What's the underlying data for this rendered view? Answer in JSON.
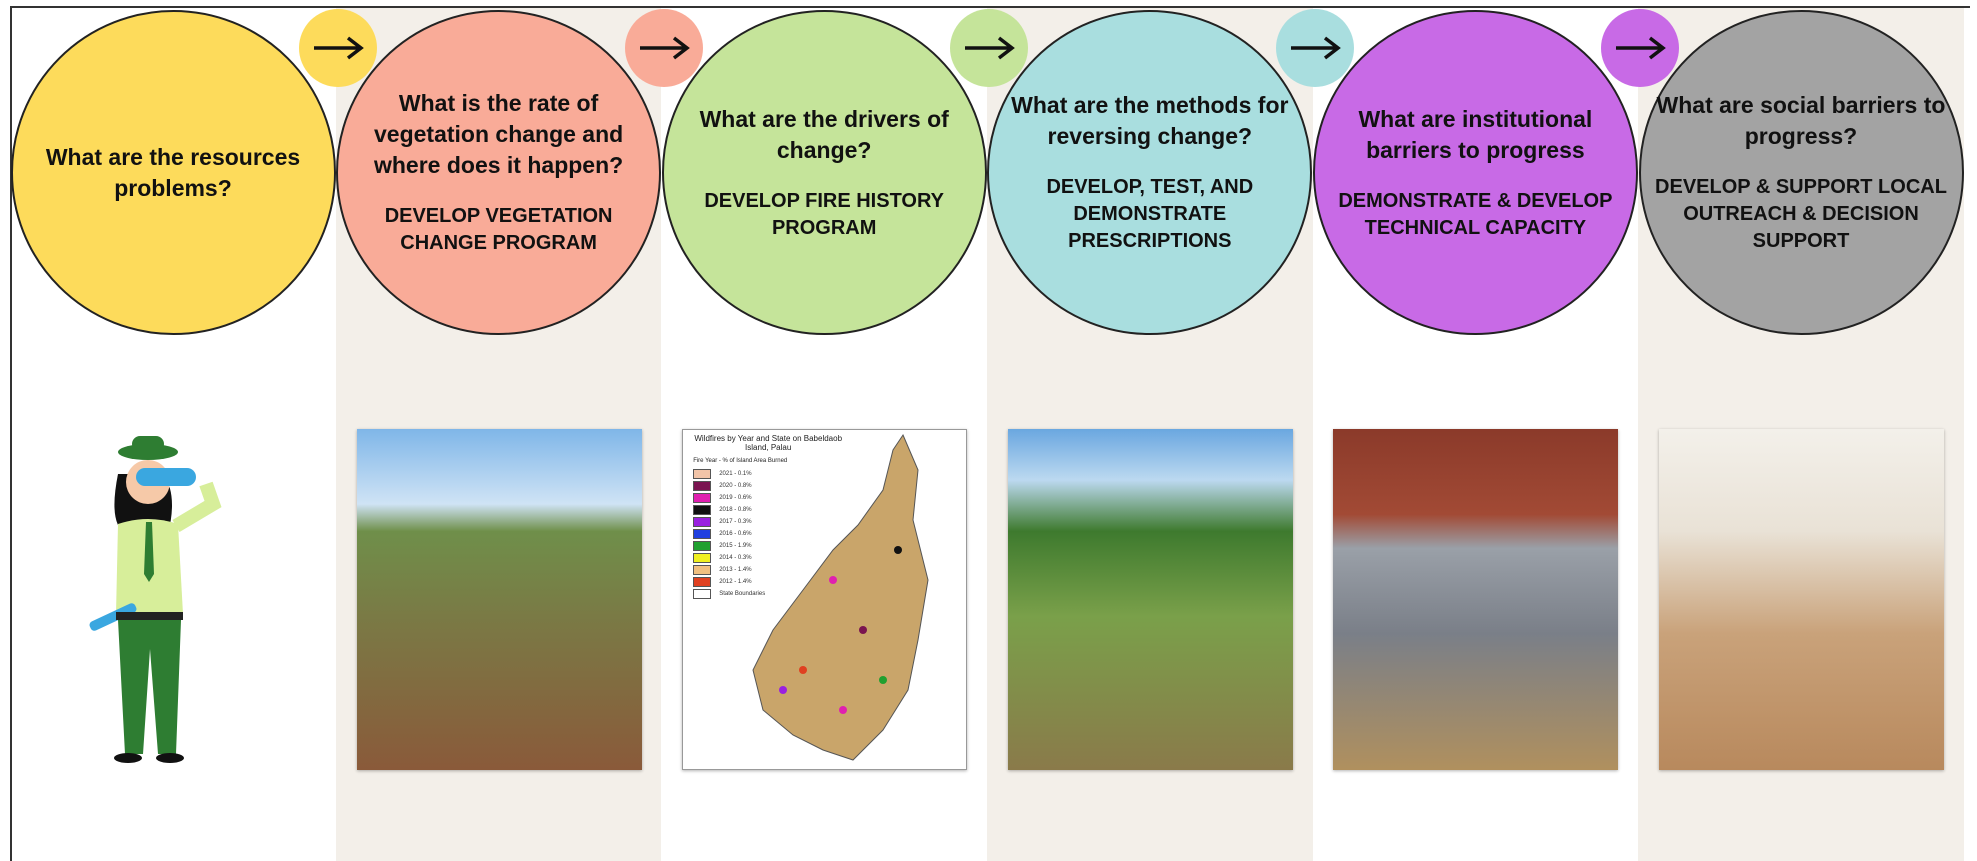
{
  "columns": [
    {
      "question": "What are the resources problems?",
      "color": "#fddb5b",
      "band": "#ffffff",
      "picture": "ranger"
    },
    {
      "question": "What is the rate of vegetation change and where does it happen?",
      "action": "DEVELOP VEGETATION CHANGE PROGRAM",
      "color": "#f9ab98",
      "band": "#f3efe9",
      "picture": "shrubland"
    },
    {
      "question": "What are the drivers of change?",
      "action": "DEVELOP FIRE HISTORY PROGRAM",
      "color": "#c5e49a",
      "band": "#ffffff",
      "picture": "map"
    },
    {
      "question": "What are the methods for reversing change?",
      "action": "DEVELOP, TEST, AND DEMONSTRATE PRESCRIPTIONS",
      "color": "#a9dedf",
      "band": "#f3efe9",
      "picture": "planting"
    },
    {
      "question": "What are institutional barriers to progress",
      "action": "DEMONSTRATE & DEVELOP TECHNICAL CAPACITY",
      "color": "#c86ae6",
      "band": "#ffffff",
      "picture": "shelter"
    },
    {
      "question": "What are social barriers to progress?",
      "action": "DEVELOP  & SUPPORT LOCAL OUTREACH & DECISION SUPPORT",
      "color": "#a3a3a3",
      "band": "#f3efe9",
      "picture": "classroom"
    }
  ],
  "map": {
    "title": "Wildfires by Year and State on Babeldaob Island, Palau",
    "subtitle": "Fire Year - % of Island Area Burned",
    "legend": [
      {
        "label": "2021 - 0.1%",
        "color": "#f2c4a8"
      },
      {
        "label": "2020 - 0.8%",
        "color": "#7a1450"
      },
      {
        "label": "2019 - 0.6%",
        "color": "#e020b0"
      },
      {
        "label": "2018 - 0.8%",
        "color": "#111111"
      },
      {
        "label": "2017 - 0.3%",
        "color": "#9a20e0"
      },
      {
        "label": "2016 - 0.6%",
        "color": "#2040e0"
      },
      {
        "label": "2015 - 1.9%",
        "color": "#20a030"
      },
      {
        "label": "2014 - 0.3%",
        "color": "#f0f020"
      },
      {
        "label": "2013 - 1.4%",
        "color": "#f0c080"
      },
      {
        "label": "2012 - 1.4%",
        "color": "#e04020"
      },
      {
        "label": "State Boundaries",
        "color": "#ffffff"
      }
    ]
  }
}
